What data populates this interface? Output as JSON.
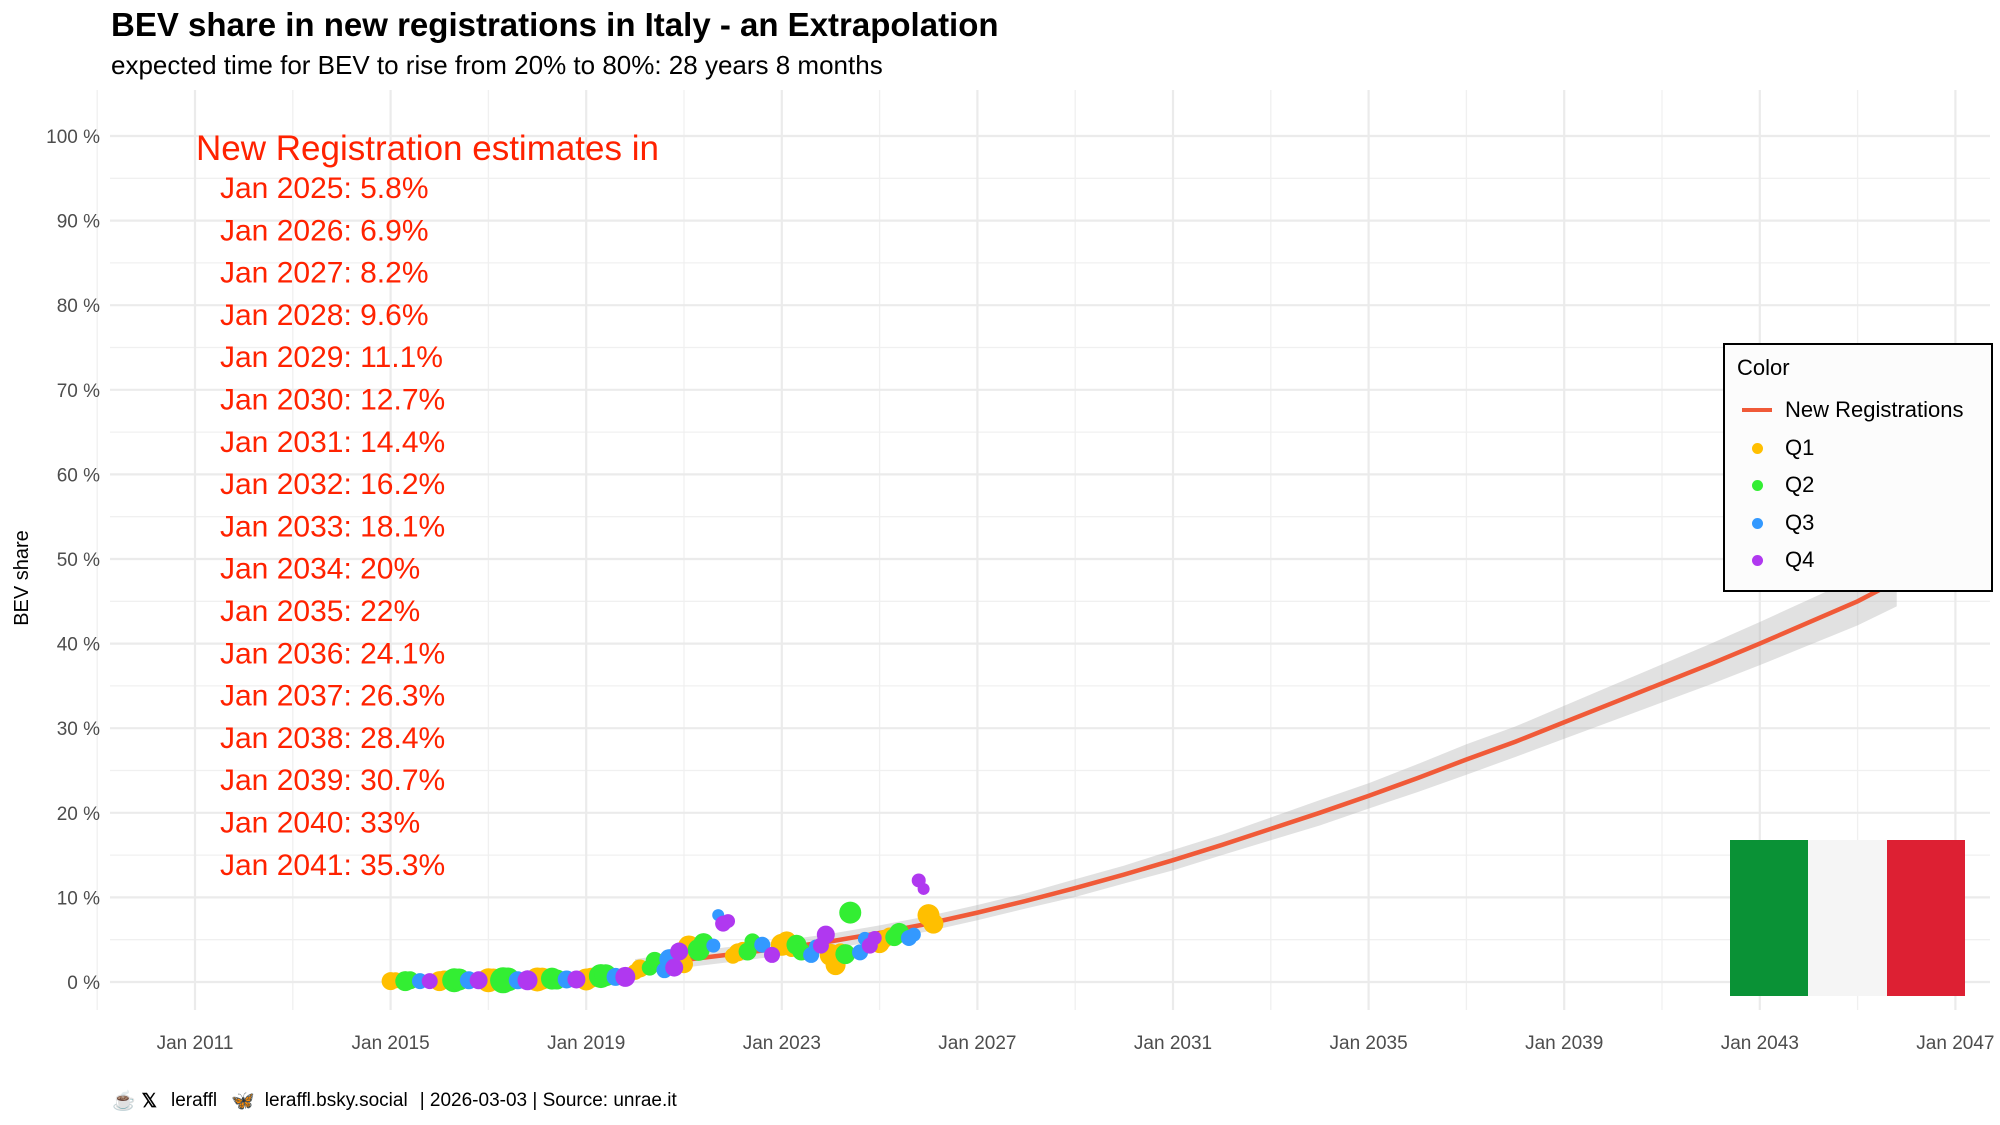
{
  "header": {
    "title": "BEV share in new registrations in Italy - an Extrapolation",
    "subtitle": "expected time for BEV to rise from 20% to 80%: 28 years 8 months"
  },
  "caption": {
    "coffee_icon": "coffee-cup-icon",
    "x_icon": "x-logo-icon",
    "x_handle": "leraffl",
    "bluesky_icon": "butterfly-icon",
    "bluesky_handle": "leraffl.bsky.social",
    "date_source": "| 2026-03-03 | Source: unrae.it"
  },
  "legend": {
    "title": "Color",
    "items": [
      {
        "label": "New Registrations",
        "type": "line",
        "color": "#f05a38"
      },
      {
        "label": "Q1",
        "type": "point",
        "color": "#ffbf00"
      },
      {
        "label": "Q2",
        "type": "point",
        "color": "#33ee33"
      },
      {
        "label": "Q3",
        "type": "point",
        "color": "#3399ff"
      },
      {
        "label": "Q4",
        "type": "point",
        "color": "#b038f0"
      }
    ]
  },
  "flag": {
    "name": "Italy",
    "colors": [
      "#0a9236",
      "#f5f5f5",
      "#dd2033"
    ]
  },
  "chart_data": {
    "type": "scatter",
    "title": "BEV share in new registrations in Italy - an Extrapolation",
    "xlabel": "",
    "ylabel": "BEV share",
    "xlim": [
      2010.3,
      2047.7
    ],
    "ylim": [
      -1.5,
      102
    ],
    "grid": true,
    "legend_position": "right",
    "x_ticks": [
      {
        "value": 2011,
        "label": "Jan 2011"
      },
      {
        "value": 2015,
        "label": "Jan 2015"
      },
      {
        "value": 2019,
        "label": "Jan 2019"
      },
      {
        "value": 2023,
        "label": "Jan 2023"
      },
      {
        "value": 2027,
        "label": "Jan 2027"
      },
      {
        "value": 2031,
        "label": "Jan 2031"
      },
      {
        "value": 2035,
        "label": "Jan 2035"
      },
      {
        "value": 2039,
        "label": "Jan 2039"
      },
      {
        "value": 2043,
        "label": "Jan 2043"
      },
      {
        "value": 2047,
        "label": "Jan 2047"
      }
    ],
    "y_ticks": [
      {
        "value": 0,
        "label": "0 %"
      },
      {
        "value": 10,
        "label": "10 %"
      },
      {
        "value": 20,
        "label": "20 %"
      },
      {
        "value": 30,
        "label": "30 %"
      },
      {
        "value": 40,
        "label": "40 %"
      },
      {
        "value": 50,
        "label": "50 %"
      },
      {
        "value": 60,
        "label": "60 %"
      },
      {
        "value": 70,
        "label": "70 %"
      },
      {
        "value": 80,
        "label": "80 %"
      },
      {
        "value": 90,
        "label": "90 %"
      },
      {
        "value": 100,
        "label": "100 %"
      }
    ],
    "annotation": {
      "heading": "New Registration estimates in",
      "lines": [
        "Jan 2025: 5.8%",
        "Jan 2026: 6.9%",
        "Jan 2027: 8.2%",
        "Jan 2028: 9.6%",
        "Jan 2029: 11.1%",
        "Jan 2030: 12.7%",
        "Jan 2031: 14.4%",
        "Jan 2032: 16.2%",
        "Jan 2033: 18.1%",
        "Jan 2034: 20%",
        "Jan 2035: 22%",
        "Jan 2036: 24.1%",
        "Jan 2037: 26.3%",
        "Jan 2038: 28.4%",
        "Jan 2039: 30.7%",
        "Jan 2040: 33%",
        "Jan 2041: 35.3%"
      ],
      "color": "#ff2200"
    },
    "trend_series": {
      "name": "New Registrations",
      "x": [
        2020.0,
        2021.0,
        2022.0,
        2023.0,
        2024.0,
        2025.0,
        2026.0,
        2027.0,
        2028.0,
        2029.0,
        2030.0,
        2031.0,
        2032.0,
        2033.0,
        2034.0,
        2035.0,
        2036.0,
        2037.0,
        2038.0,
        2039.0,
        2040.0,
        2041.0,
        2042.0,
        2043.0,
        2044.0,
        2045.0,
        2045.8
      ],
      "y": [
        1.8,
        2.6,
        3.3,
        4.0,
        4.8,
        5.8,
        6.9,
        8.2,
        9.6,
        11.1,
        12.7,
        14.4,
        16.2,
        18.1,
        20.0,
        22.0,
        24.1,
        26.3,
        28.4,
        30.7,
        33.0,
        35.3,
        37.6,
        40.0,
        42.5,
        45.0,
        47.4
      ],
      "ci_halfwidth": [
        0.3,
        0.3,
        0.3,
        0.3,
        0.3,
        0.3,
        0.3,
        0.3,
        0.3,
        0.35,
        0.35,
        0.4,
        0.4,
        0.45,
        0.5,
        0.5,
        0.55,
        0.6,
        0.6,
        0.65,
        0.7,
        0.75,
        0.8,
        0.85,
        0.9,
        0.95,
        1.0
      ],
      "color": "#f05a38"
    },
    "point_series": [
      {
        "name": "Q1",
        "color": "#ffbf00",
        "x": [
          2015.0,
          2015.1,
          2016.0,
          2016.1,
          2017.0,
          2017.1,
          2018.0,
          2018.1,
          2019.0,
          2019.1,
          2020.0,
          2020.1,
          2021.0,
          2021.1,
          2022.0,
          2022.1,
          2022.2,
          2023.0,
          2023.1,
          2023.2,
          2024.0,
          2024.1,
          2024.2,
          2025.0,
          2025.1,
          2025.2,
          2026.0,
          2026.1
        ],
        "y": [
          0.1,
          0.2,
          0.1,
          0.3,
          0.2,
          0.3,
          0.3,
          0.4,
          0.3,
          0.5,
          1.2,
          1.6,
          2.1,
          4.2,
          3.1,
          3.5,
          3.8,
          4.4,
          4.8,
          3.9,
          3.2,
          2.0,
          3.5,
          4.6,
          5.1,
          5.5,
          7.9,
          6.9
        ],
        "size": [
          9,
          8,
          10,
          9,
          12,
          11,
          12,
          11,
          11,
          10,
          8,
          9,
          9,
          11,
          8,
          9,
          8,
          11,
          10,
          8,
          11,
          10,
          9,
          10,
          9,
          8,
          11,
          10
        ]
      },
      {
        "name": "Q2",
        "color": "#33ee33",
        "x": [
          2015.3,
          2015.4,
          2016.3,
          2016.4,
          2017.3,
          2017.4,
          2018.3,
          2018.4,
          2019.3,
          2019.4,
          2020.3,
          2020.4,
          2021.3,
          2021.4,
          2022.3,
          2022.4,
          2023.3,
          2023.4,
          2024.3,
          2024.4,
          2025.3,
          2025.4
        ],
        "y": [
          0.1,
          0.2,
          0.2,
          0.3,
          0.2,
          0.3,
          0.4,
          0.3,
          0.7,
          0.8,
          1.7,
          2.5,
          3.8,
          4.6,
          3.6,
          4.8,
          4.4,
          3.6,
          3.3,
          8.2,
          5.3,
          5.8
        ],
        "size": [
          10,
          9,
          12,
          11,
          13,
          12,
          11,
          10,
          12,
          11,
          8,
          9,
          11,
          10,
          9,
          8,
          10,
          9,
          10,
          11,
          9,
          10
        ]
      },
      {
        "name": "Q3",
        "color": "#3399ff",
        "x": [
          2015.6,
          2016.6,
          2017.6,
          2018.6,
          2019.6,
          2020.6,
          2020.7,
          2021.6,
          2021.7,
          2022.6,
          2023.6,
          2023.7,
          2024.6,
          2024.7,
          2025.6,
          2025.7
        ],
        "y": [
          0.1,
          0.2,
          0.2,
          0.3,
          0.6,
          1.4,
          2.7,
          4.3,
          7.9,
          4.4,
          3.2,
          4.2,
          3.5,
          5.1,
          5.2,
          5.6
        ],
        "size": [
          8,
          9,
          9,
          9,
          9,
          8,
          10,
          7,
          6,
          8,
          8,
          7,
          8,
          7,
          8,
          7
        ]
      },
      {
        "name": "Q4",
        "color": "#b038f0",
        "x": [
          2015.8,
          2016.8,
          2017.8,
          2018.8,
          2019.8,
          2020.8,
          2020.9,
          2021.8,
          2021.9,
          2022.8,
          2023.8,
          2023.9,
          2024.8,
          2024.9,
          2025.8,
          2025.9
        ],
        "y": [
          0.1,
          0.2,
          0.2,
          0.3,
          0.6,
          1.7,
          3.6,
          6.9,
          7.2,
          3.2,
          4.3,
          5.6,
          4.3,
          5.2,
          12.0,
          11.0
        ],
        "size": [
          8,
          9,
          10,
          9,
          10,
          9,
          9,
          8,
          7,
          8,
          8,
          9,
          8,
          7,
          7,
          6
        ]
      }
    ]
  }
}
